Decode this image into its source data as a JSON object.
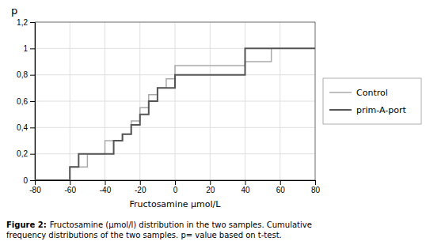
{
  "chart_data": {
    "type": "step",
    "title": "",
    "ylabel": "p",
    "xlabel": "Fructosamine μmol/L",
    "xlim": [
      -80,
      80
    ],
    "ylim": [
      0,
      1.2
    ],
    "xticks": [
      -80,
      -60,
      -40,
      -20,
      0,
      20,
      40,
      60,
      80
    ],
    "yticks": [
      0,
      {
        "value": 0.2,
        "label": "0,2"
      },
      {
        "value": 0.4,
        "label": "0,4"
      },
      {
        "value": 0.6,
        "label": "0,6"
      },
      {
        "value": 0.8,
        "label": "0,8"
      },
      1,
      {
        "value": 1.2,
        "label": "1,2"
      }
    ],
    "grid": true,
    "legend": "right",
    "series": [
      {
        "name": "Control",
        "color": "#aaaaaa",
        "x": [
          -80,
          -60,
          -50,
          -40,
          -30,
          -25,
          -20,
          -15,
          -10,
          -5,
          0,
          20,
          40,
          55,
          80
        ],
        "values": [
          0,
          0.1,
          0.2,
          0.3,
          0.35,
          0.45,
          0.55,
          0.65,
          0.7,
          0.77,
          0.87,
          0.87,
          0.9,
          1.0,
          1.0
        ]
      },
      {
        "name": "prim-A-port",
        "color": "#555555",
        "x": [
          -80,
          -60,
          -55,
          -40,
          -35,
          -30,
          -25,
          -20,
          -15,
          -10,
          0,
          20,
          40,
          80
        ],
        "values": [
          0,
          0.1,
          0.2,
          0.2,
          0.3,
          0.35,
          0.42,
          0.5,
          0.6,
          0.7,
          0.8,
          0.8,
          1.0,
          1.0
        ]
      }
    ],
    "annotations": [
      "Figure 2:",
      "Fructosamine (μmol/l) distribution in the two samples. Cumulative",
      "frequency distributions of the two samples. p= value based on t-test."
    ]
  }
}
